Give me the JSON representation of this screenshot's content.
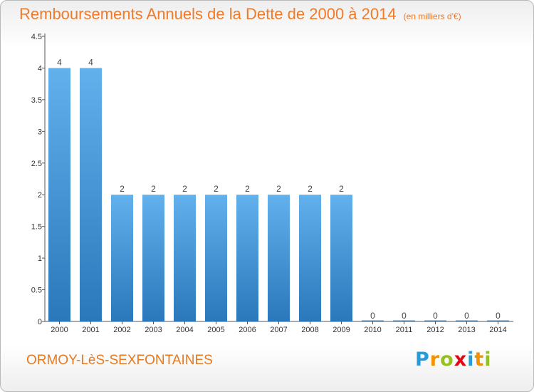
{
  "header": {
    "title": "Remboursements Annuels de la Dette de 2000 à 2014",
    "unit": "(en milliers d'€)"
  },
  "commune": "ORMOY-LèS-SEXFONTAINES",
  "logo": {
    "text": "Proxiti",
    "letters": [
      {
        "char": "P",
        "color": "#2a9bd8"
      },
      {
        "char": "r",
        "color": "#f39200"
      },
      {
        "char": "o",
        "color": "#94c11f"
      },
      {
        "char": "x",
        "color": "#e30613"
      },
      {
        "char": "i",
        "color": "#2a9bd8"
      },
      {
        "char": "t",
        "color": "#f39200"
      },
      {
        "char": "i",
        "color": "#94c11f"
      }
    ]
  },
  "chart_data": {
    "type": "bar",
    "title": "Remboursements Annuels de la Dette de 2000 à 2014",
    "categories": [
      "2000",
      "2001",
      "2002",
      "2003",
      "2004",
      "2005",
      "2006",
      "2007",
      "2008",
      "2009",
      "2010",
      "2011",
      "2012",
      "2013",
      "2014"
    ],
    "values": [
      4,
      4,
      2,
      2,
      2,
      2,
      2,
      2,
      2,
      2,
      0,
      0,
      0,
      0,
      0
    ],
    "ylim": [
      0,
      4.5
    ],
    "yticks": [
      {
        "value": 0,
        "label": "0"
      },
      {
        "value": 0.5,
        "label": "0.5"
      },
      {
        "value": 1,
        "label": "1"
      },
      {
        "value": 1.5,
        "label": "1.5"
      },
      {
        "value": 2,
        "label": "2"
      },
      {
        "value": 2.5,
        "label": "2.5"
      },
      {
        "value": 3,
        "label": "3"
      },
      {
        "value": 3.5,
        "label": "3.5"
      },
      {
        "value": 4,
        "label": "4"
      },
      {
        "value": 4.5,
        "label": "4.5"
      }
    ],
    "bar_color": "#3d92d6",
    "grid": false
  }
}
